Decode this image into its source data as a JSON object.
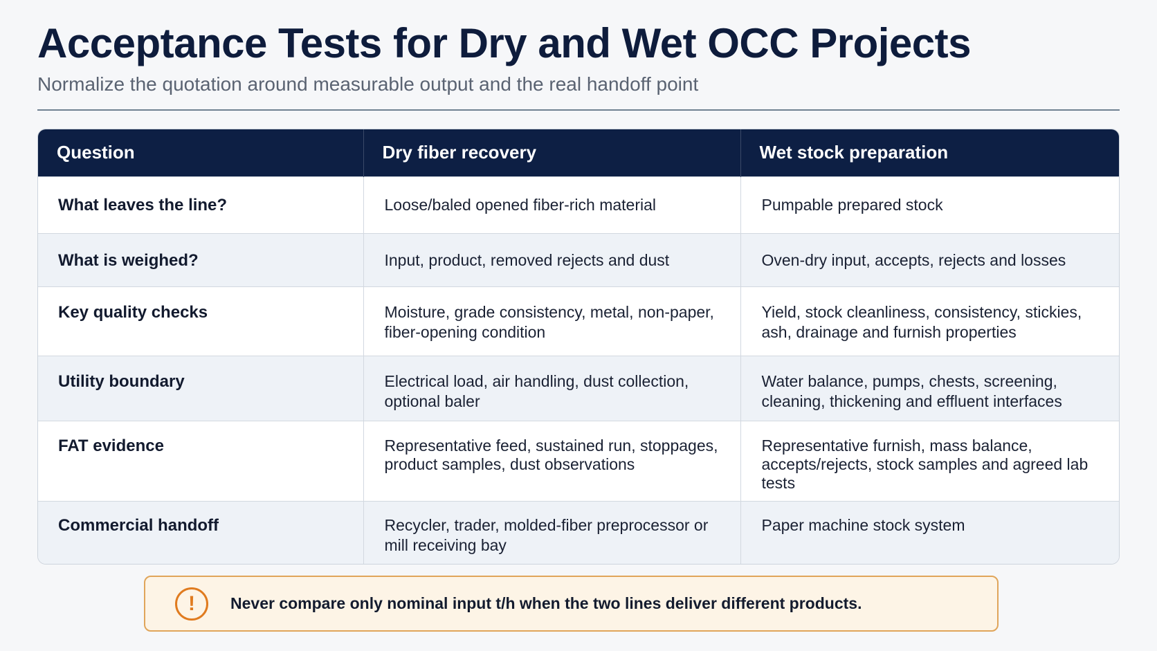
{
  "header": {
    "title": "Acceptance Tests for Dry and Wet OCC Projects",
    "subtitle": "Normalize the quotation around measurable output and the real handoff point"
  },
  "table": {
    "columns": [
      "Question",
      "Dry fiber recovery",
      "Wet stock preparation"
    ],
    "rows": [
      {
        "question": "What leaves the line?",
        "dry": "Loose/baled opened fiber-rich material",
        "wet": "Pumpable prepared stock"
      },
      {
        "question": "What is weighed?",
        "dry": "Input, product, removed rejects and dust",
        "wet": "Oven-dry input, accepts, rejects and losses"
      },
      {
        "question": "Key quality checks",
        "dry": "Moisture, grade consistency, metal, non-paper, fiber-opening condition",
        "wet": "Yield, stock cleanliness, consistency, stickies, ash, drainage and furnish properties"
      },
      {
        "question": "Utility boundary",
        "dry": "Electrical load, air handling, dust collection, optional baler",
        "wet": "Water balance, pumps, chests, screening, cleaning, thickening and effluent interfaces"
      },
      {
        "question": "FAT evidence",
        "dry": "Representative feed, sustained run, stoppages, product samples, dust observations",
        "wet": "Representative furnish, mass balance, accepts/rejects, stock samples and agreed lab tests"
      },
      {
        "question": "Commercial handoff",
        "dry": "Recycler, trader, molded-fiber preprocessor or mill receiving bay",
        "wet": "Paper machine stock system"
      }
    ]
  },
  "callout": {
    "icon": "exclamation-circle-icon",
    "icon_glyph": "!",
    "text": "Never compare only nominal input t/h when the two lines deliver different products.",
    "accent_color": "#e07b1f"
  }
}
